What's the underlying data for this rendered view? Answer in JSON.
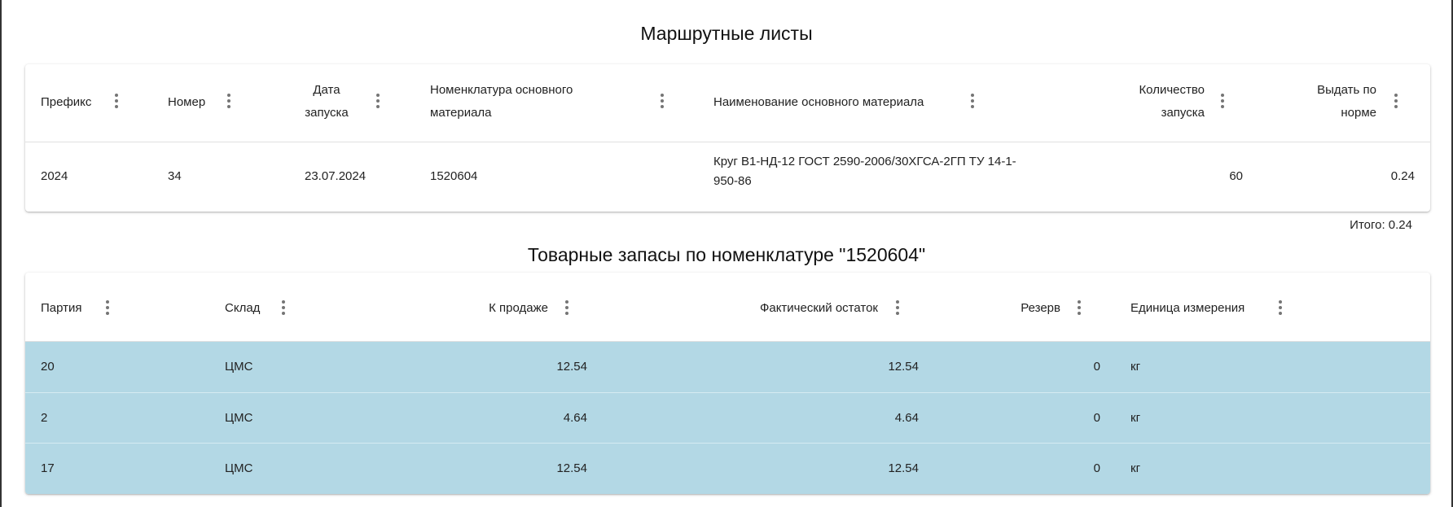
{
  "route_sheets": {
    "title": "Маршрутные листы",
    "columns": [
      "Префикс",
      "Номер",
      "Дата запуска",
      "Номенклатура основного материала",
      "Наименование основного материала",
      "Количество запуска",
      "Выдать по норме"
    ],
    "col_lines": [
      [
        "Префикс"
      ],
      [
        "Номер"
      ],
      [
        "Дата",
        "запуска"
      ],
      [
        "Номенклатура основного",
        "материала"
      ],
      [
        "Наименование основного материала"
      ],
      [
        "Количество",
        "запуска"
      ],
      [
        "Выдать по",
        "норме"
      ]
    ],
    "rows": [
      {
        "prefix": "2024",
        "number": "34",
        "date": "23.07.2024",
        "nomenclature": "1520604",
        "name_line1": "Круг В1-НД-12 ГОСТ 2590-2006/30ХГСА-2ГП ТУ 14-1-",
        "name_line2": "950-86",
        "quantity": "60",
        "norm": "0.24"
      }
    ],
    "total": "Итого: 0.24"
  },
  "stock": {
    "title": "Товарные запасы по номенклатуре \"1520604\"",
    "columns": [
      "Партия",
      "Склад",
      "К продаже",
      "Фактический остаток",
      "Резерв",
      "Единица измерения"
    ],
    "row_color": "#b3d8e5",
    "rows": [
      {
        "batch": "20",
        "warehouse": "ЦМС",
        "for_sale": "12.54",
        "actual": "12.54",
        "reserve": "0",
        "unit": "кг"
      },
      {
        "batch": "2",
        "warehouse": "ЦМС",
        "for_sale": "4.64",
        "actual": "4.64",
        "reserve": "0",
        "unit": "кг"
      },
      {
        "batch": "17",
        "warehouse": "ЦМС",
        "for_sale": "12.54",
        "actual": "12.54",
        "reserve": "0",
        "unit": "кг"
      }
    ]
  }
}
